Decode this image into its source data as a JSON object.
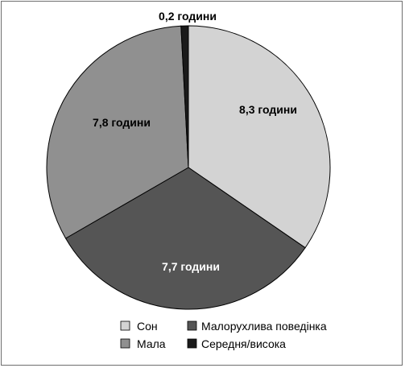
{
  "chart_data": {
    "type": "pie",
    "categories": [
      "Сон",
      "Малорухлива поведінка",
      "Мала",
      "Середня/висока"
    ],
    "values": [
      8.3,
      7.7,
      7.8,
      0.2
    ],
    "slice_labels": [
      "8,3 години",
      "7,7 години",
      "7,8 години",
      "0,2 години"
    ],
    "colors": [
      "#d3d3d3",
      "#555555",
      "#909090",
      "#1a1a1a"
    ],
    "label_colors": [
      "#000000",
      "#ffffff",
      "#000000",
      "#000000"
    ],
    "legend": {
      "placement": "bottom-right",
      "items": [
        "Сон",
        "Малорухлива поведінка",
        "Мала",
        "Середня/висока"
      ]
    }
  }
}
